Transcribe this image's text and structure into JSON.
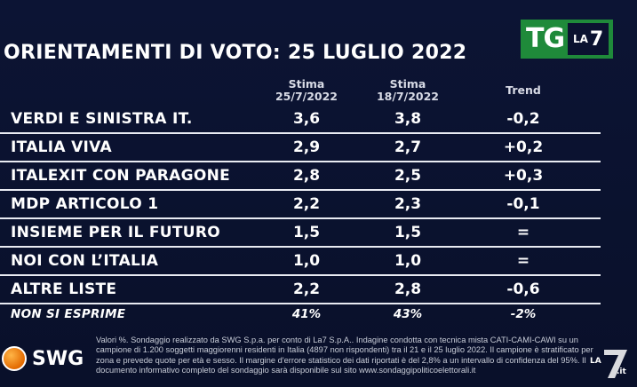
{
  "brand": {
    "tg": "TG",
    "la": "LA",
    "seven": "7",
    "swg": "SWG",
    "watermark_la": "LA",
    "watermark_seven": "7",
    "watermark_it": ".it"
  },
  "title": "ORIENTAMENTI DI VOTO: 25 LUGLIO 2022",
  "headers": {
    "col1": "Stima\n25/7/2022",
    "col1_a": "Stima",
    "col1_b": "25/7/2022",
    "col2_a": "Stima",
    "col2_b": "18/7/2022",
    "trend": "Trend"
  },
  "rows": [
    {
      "party": "VERDI E SINISTRA IT.",
      "current": "3,6",
      "previous": "3,8",
      "trend": "-0,2"
    },
    {
      "party": "ITALIA VIVA",
      "current": "2,9",
      "previous": "2,7",
      "trend": "+0,2"
    },
    {
      "party": "ITALEXIT CON PARAGONE",
      "current": "2,8",
      "previous": "2,5",
      "trend": "+0,3"
    },
    {
      "party": "MDP ARTICOLO 1",
      "current": "2,2",
      "previous": "2,3",
      "trend": "-0,1"
    },
    {
      "party": "INSIEME PER IL FUTURO",
      "current": "1,5",
      "previous": "1,5",
      "trend": "="
    },
    {
      "party": "NOI CON L’ITALIA",
      "current": "1,0",
      "previous": "1,0",
      "trend": "="
    },
    {
      "party": "ALTRE LISTE",
      "current": "2,2",
      "previous": "2,8",
      "trend": "-0,6"
    },
    {
      "party": "NON SI ESPRIME",
      "current": "41%",
      "previous": "43%",
      "trend": "-2%"
    }
  ],
  "footnote": "Valori %. Sondaggio realizzato da SWG S.p.a. per conto di La7 S.p.A.. Indagine condotta con tecnica mista CATI-CAMI-CAWI su un campione di 1.200 soggetti maggiorenni residenti in Italia (4897 non rispondenti) tra il 21 e il 25 luglio 2022. Il campione è stratificato per zona e prevede quote per età e sesso. Il margine d'errore statistico dei dati riportati è del 2,8% a un intervallo di confidenza del 95%. Il documento informativo completo del sondaggio sarà disponibile sul sito www.sondaggipoliticoelettorali.it",
  "colors": {
    "background": "#0b1230",
    "tg_green": "#1f8a3a",
    "swg_orange": "#e36a00",
    "row_line": "#e9ebf2"
  },
  "icons": {
    "swg_logo": "swg-ball-icon",
    "watermark": "la7-watermark-icon"
  }
}
